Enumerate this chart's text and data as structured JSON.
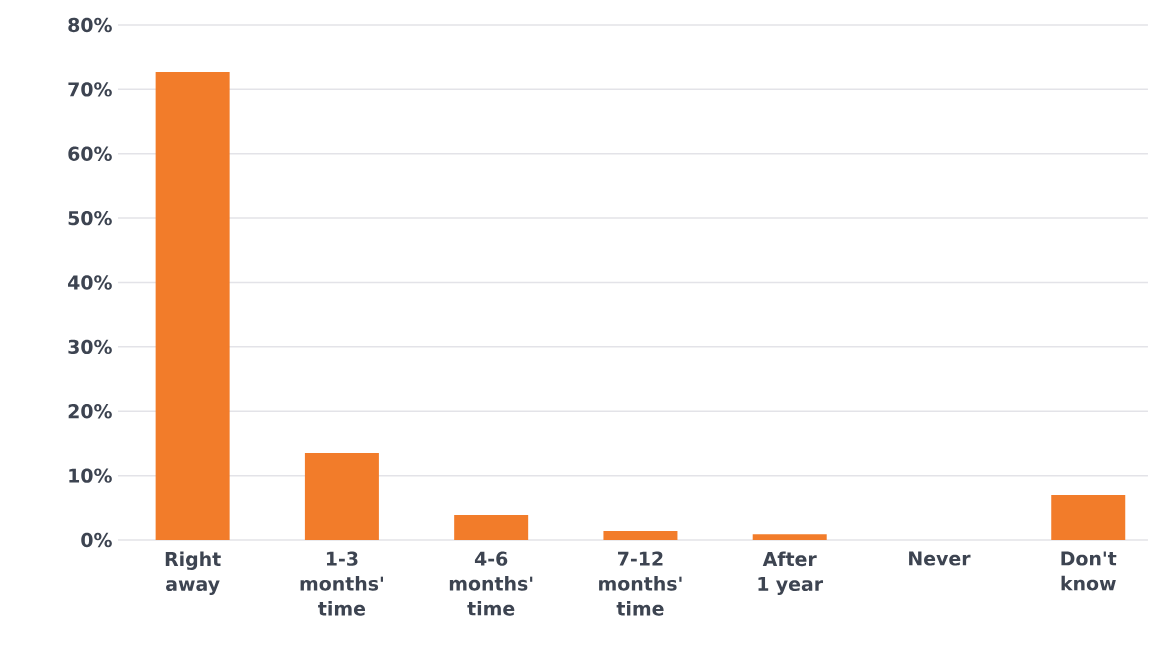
{
  "chart_data": {
    "type": "bar",
    "categories": [
      "Right away",
      "1-3 months' time",
      "4-6 months' time",
      "7-12 months' time",
      "After 1 year",
      "Never",
      "Don't know"
    ],
    "values": [
      72.7,
      13.5,
      3.9,
      1.4,
      0.9,
      0,
      7.0
    ],
    "color": "#f27c2a",
    "ylim": [
      0,
      80
    ],
    "yticks": [
      {
        "value": 0,
        "label": "0%"
      },
      {
        "value": 10,
        "label": "10%"
      },
      {
        "value": 20,
        "label": "20%"
      },
      {
        "value": 30,
        "label": "30%"
      },
      {
        "value": 40,
        "label": "40%"
      },
      {
        "value": 50,
        "label": "50%"
      },
      {
        "value": 60,
        "label": "60%"
      },
      {
        "value": 70,
        "label": "70%"
      },
      {
        "value": 80,
        "label": "80%"
      }
    ],
    "grid": "y"
  }
}
